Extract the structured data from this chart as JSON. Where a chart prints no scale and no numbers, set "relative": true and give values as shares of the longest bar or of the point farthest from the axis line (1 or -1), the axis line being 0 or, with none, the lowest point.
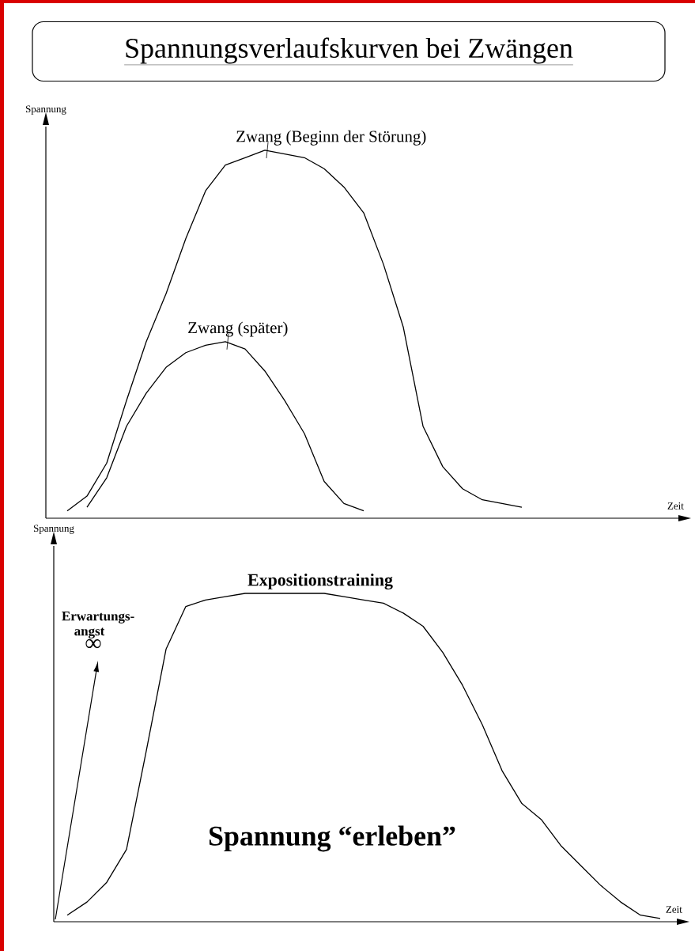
{
  "chart_data": [
    {
      "type": "line",
      "title": "Spannungsverlaufskurven bei Zwängen",
      "ylabel": "Spannung",
      "xlabel": "Zeit",
      "relative": true,
      "marker": "none",
      "line_style": "solid",
      "categories": [
        null,
        null,
        null,
        null,
        null,
        null,
        null,
        null,
        null,
        null,
        null,
        null,
        null,
        null,
        null,
        null,
        null,
        null,
        null,
        null,
        null,
        null,
        null,
        null,
        null,
        null,
        null,
        null,
        null,
        null,
        null,
        null,
        null
      ],
      "series": [
        {
          "name": "Zwang (Beginn der Störung)",
          "color": "#000000",
          "values": [
            null,
            0.02,
            0.06,
            0.15,
            0.32,
            0.48,
            0.61,
            0.76,
            0.89,
            0.96,
            0.98,
            1.0,
            0.99,
            0.98,
            0.95,
            0.9,
            0.83,
            0.69,
            0.52,
            0.25,
            0.14,
            0.08,
            0.05,
            0.04,
            0.03,
            null,
            null,
            null,
            null,
            null,
            null,
            null,
            null
          ]
        },
        {
          "name": "Zwang (später)",
          "color": "#000000",
          "values": [
            null,
            null,
            0.03,
            0.11,
            0.25,
            0.34,
            0.41,
            0.45,
            0.47,
            0.48,
            0.46,
            0.4,
            0.32,
            0.23,
            0.1,
            0.04,
            0.02,
            null,
            null,
            null,
            null,
            null,
            null,
            null,
            null,
            null,
            null,
            null,
            null,
            null,
            null,
            null,
            null
          ]
        }
      ]
    },
    {
      "type": "line",
      "title": "Expositionstraining",
      "ylabel": "Spannung",
      "xlabel": "Zeit",
      "relative": true,
      "marker": "none",
      "line_style": "solid",
      "annotations": [
        "Erwartungs-angst",
        "∞",
        "Spannung “erleben”"
      ],
      "categories": [
        null,
        null,
        null,
        null,
        null,
        null,
        null,
        null,
        null,
        null,
        null,
        null,
        null,
        null,
        null,
        null,
        null,
        null,
        null,
        null,
        null,
        null,
        null,
        null,
        null,
        null,
        null,
        null,
        null,
        null,
        null,
        null,
        null
      ],
      "series": [
        {
          "color": "#000000",
          "values": [
            null,
            0.02,
            0.06,
            0.12,
            0.22,
            0.52,
            0.83,
            0.96,
            0.98,
            0.99,
            1.0,
            1.0,
            1.0,
            1.0,
            1.0,
            0.99,
            0.98,
            0.97,
            0.94,
            0.9,
            0.82,
            0.72,
            0.6,
            0.46,
            0.36,
            0.31,
            0.23,
            0.17,
            0.11,
            0.06,
            0.02,
            0.01,
            null
          ]
        }
      ]
    }
  ]
}
